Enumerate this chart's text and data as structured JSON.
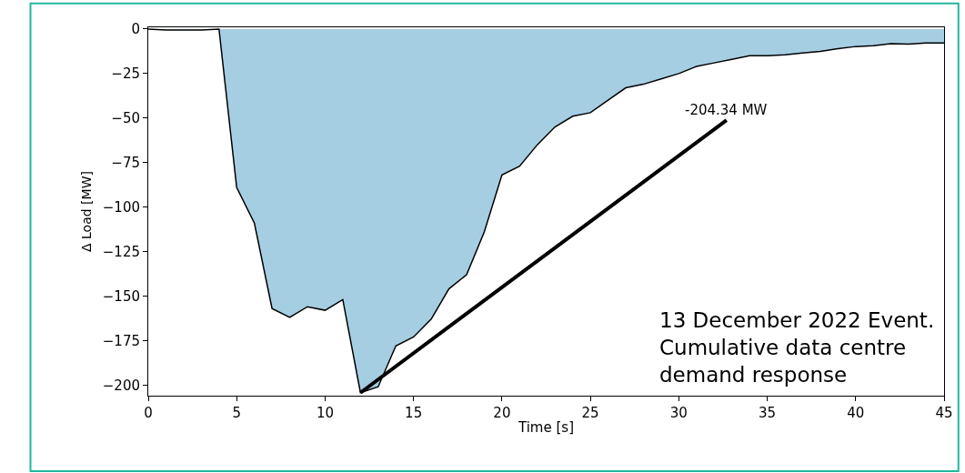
{
  "chart_data": {
    "type": "area",
    "xlabel": "Time [s]",
    "ylabel": "Δ Load [MW]",
    "x": [
      0,
      1,
      2,
      3,
      4,
      5,
      6,
      7,
      8,
      9,
      10,
      11,
      12,
      13,
      14,
      15,
      16,
      17,
      18,
      19,
      20,
      21,
      22,
      23,
      24,
      25,
      26,
      27,
      28,
      29,
      30,
      31,
      32,
      33,
      34,
      35,
      36,
      37,
      38,
      39,
      40,
      41,
      42,
      43,
      44,
      45
    ],
    "series": [
      {
        "color": "#a6cee3",
        "values": [
          0,
          -0.5,
          -0.5,
          -0.5,
          0,
          -89,
          -109,
          -157,
          -162,
          -156,
          -158,
          -152,
          -204.34,
          -201,
          -178,
          -173,
          -163,
          -146,
          -138,
          -114,
          -82,
          -77,
          -65,
          -55,
          -49,
          -47,
          -40,
          -33,
          -31,
          -28,
          -25,
          -21,
          -19,
          -17,
          -15,
          -15,
          -14.4,
          -13.5,
          -12.6,
          -11,
          -9.8,
          -9.3,
          -8.2,
          -8.4,
          -7.8,
          -7.8
        ]
      }
    ],
    "annotations": [
      {
        "text": "-204.34 MW",
        "x": 12,
        "y": -204.34
      },
      "13 December 2022 Event. Cumulative data centre demand response"
    ],
    "xlim": [
      0,
      45
    ],
    "xticks": [
      0,
      5,
      10,
      15,
      20,
      25,
      30,
      35,
      40,
      45
    ],
    "ylim": [
      -206,
      1
    ],
    "yticks": [
      {
        "value": 0,
        "label": "0"
      },
      {
        "value": -25,
        "label": "−25"
      },
      {
        "value": -50,
        "label": "−50"
      },
      {
        "value": -75,
        "label": "−75"
      },
      {
        "value": -100,
        "label": "−100"
      },
      {
        "value": -125,
        "label": "−125"
      },
      {
        "value": -150,
        "label": "−150"
      },
      {
        "value": -175,
        "label": "−175"
      },
      {
        "value": -200,
        "label": "−200"
      }
    ],
    "tick_labels": "xy"
  }
}
